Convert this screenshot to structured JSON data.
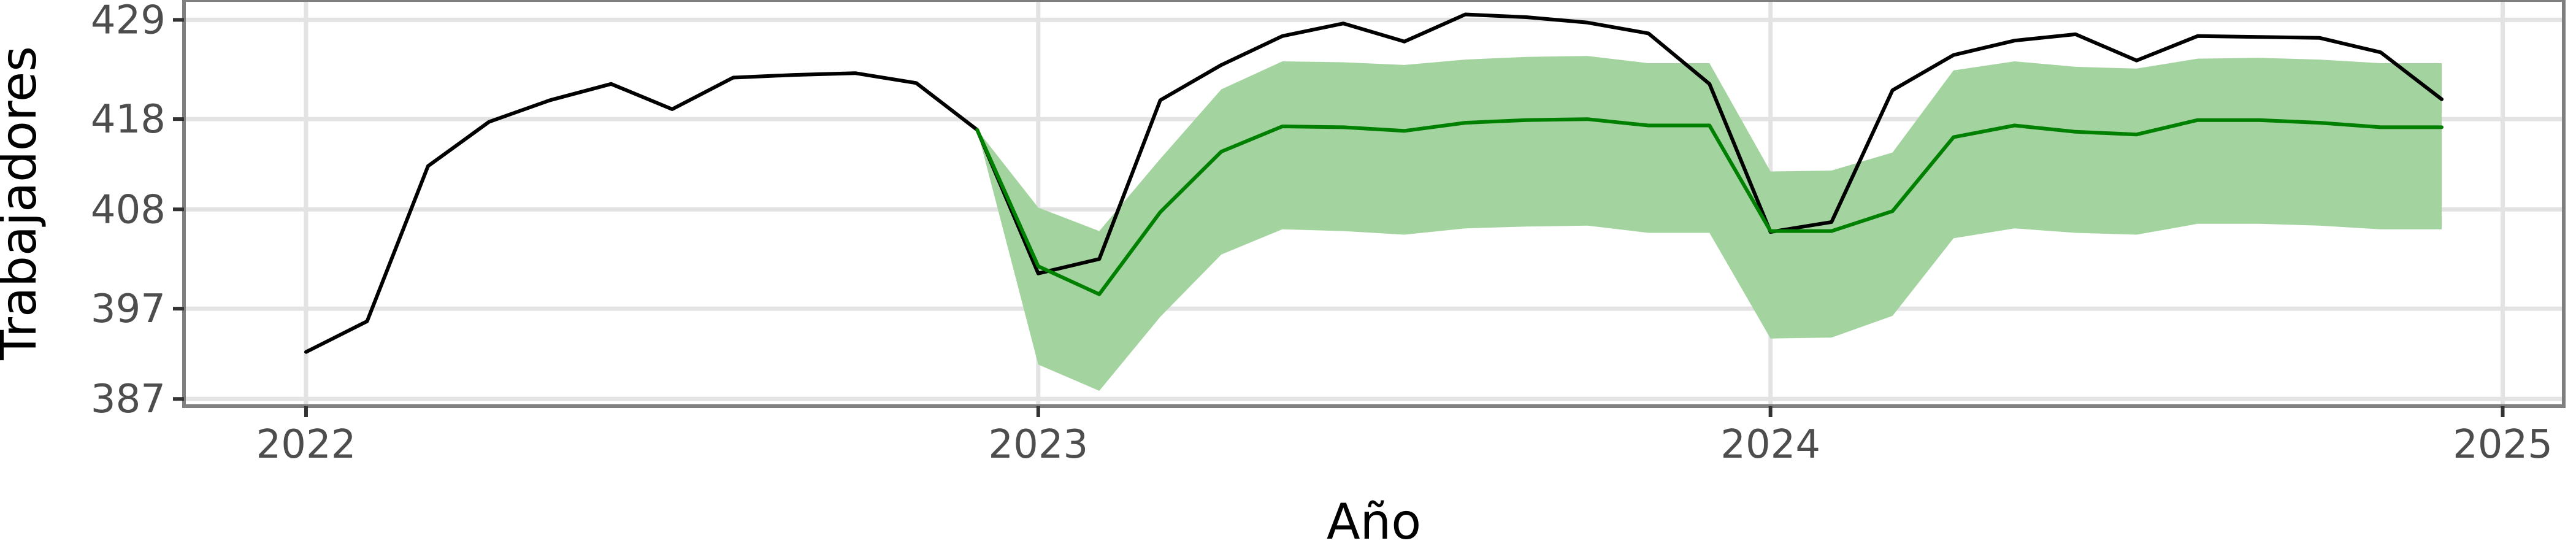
{
  "chart_data": {
    "type": "line",
    "title": "",
    "xlabel": "Año",
    "ylabel": "Trabajadores",
    "x_ticks": [
      {
        "label": "2022",
        "value": "2022-01"
      },
      {
        "label": "2023",
        "value": "2023-01"
      },
      {
        "label": "2024",
        "value": "2024-01"
      },
      {
        "label": "2025",
        "value": "2025-01"
      }
    ],
    "y_ticks": [
      387,
      397,
      408,
      418,
      429
    ],
    "xlim": [
      "2021-11",
      "2025-02"
    ],
    "ylim": [
      386.2,
      431.2
    ],
    "grid": true,
    "legend": "none",
    "colors": {
      "actual": "#000000",
      "forecast": "#008000",
      "interval": "#a3d39f",
      "grid": "#e3e3e3",
      "panel_border": "#7f7f7f",
      "tick": "#333333",
      "tick_label": "#4d4d4d"
    },
    "series": [
      {
        "key": "actual",
        "x": [
          "2022-01",
          "2022-02",
          "2022-03",
          "2022-04",
          "2022-05",
          "2022-06",
          "2022-07",
          "2022-08",
          "2022-09",
          "2022-10",
          "2022-11",
          "2022-12",
          "2023-01",
          "2023-02",
          "2023-03",
          "2023-04",
          "2023-05",
          "2023-06",
          "2023-07",
          "2023-08",
          "2023-09",
          "2023-10",
          "2023-11",
          "2023-12",
          "2024-01",
          "2024-02",
          "2024-03",
          "2024-04",
          "2024-05",
          "2024-06",
          "2024-07",
          "2024-08",
          "2024-09",
          "2024-10",
          "2024-11",
          "2024-12"
        ],
        "values": [
          392.2,
          395.6,
          412.8,
          417.7,
          420.1,
          421.9,
          419.1,
          422.6,
          422.9,
          423.1,
          422.0,
          416.8,
          400.9,
          402.5,
          420.1,
          424.0,
          427.2,
          428.6,
          426.6,
          429.6,
          429.3,
          428.7,
          427.5,
          421.9,
          405.5,
          406.6,
          421.2,
          425.1,
          426.7,
          427.4,
          424.5,
          427.2,
          427.1,
          427.0,
          425.4,
          420.2
        ]
      },
      {
        "key": "forecast",
        "x": [
          "2022-12",
          "2023-01",
          "2023-02",
          "2023-03",
          "2023-04",
          "2023-05",
          "2023-06",
          "2023-07",
          "2023-08",
          "2023-09",
          "2023-10",
          "2023-11",
          "2023-12",
          "2024-01",
          "2024-02",
          "2024-03",
          "2024-04",
          "2024-05",
          "2024-06",
          "2024-07",
          "2024-08",
          "2024-09",
          "2024-10",
          "2024-11",
          "2024-12"
        ],
        "values": [
          416.8,
          401.7,
          398.6,
          407.7,
          414.4,
          417.2,
          417.1,
          416.7,
          417.6,
          417.9,
          418.0,
          417.3,
          417.3,
          405.6,
          405.6,
          407.8,
          416.0,
          417.3,
          416.6,
          416.3,
          417.9,
          417.9,
          417.6,
          417.1,
          417.1
        ]
      },
      {
        "key": "interval",
        "x": [
          "2022-12",
          "2023-01",
          "2023-02",
          "2023-03",
          "2023-04",
          "2023-05",
          "2023-06",
          "2023-07",
          "2023-08",
          "2023-09",
          "2023-10",
          "2023-11",
          "2023-12",
          "2024-01",
          "2024-02",
          "2024-03",
          "2024-04",
          "2024-05",
          "2024-06",
          "2024-07",
          "2024-08",
          "2024-09",
          "2024-10",
          "2024-11",
          "2024-12"
        ],
        "lower": [
          416.8,
          390.8,
          387.9,
          396.1,
          403.0,
          405.8,
          405.6,
          405.2,
          405.9,
          406.1,
          406.2,
          405.4,
          405.4,
          393.7,
          393.8,
          396.2,
          404.8,
          405.9,
          405.4,
          405.2,
          406.4,
          406.4,
          406.2,
          405.8,
          405.8
        ],
        "upper": [
          416.8,
          408.2,
          405.6,
          413.6,
          421.3,
          424.4,
          424.3,
          424.0,
          424.6,
          424.9,
          425.0,
          424.2,
          424.2,
          412.2,
          412.3,
          414.3,
          423.4,
          424.4,
          423.8,
          423.6,
          424.7,
          424.8,
          424.6,
          424.2,
          424.2
        ]
      }
    ]
  }
}
